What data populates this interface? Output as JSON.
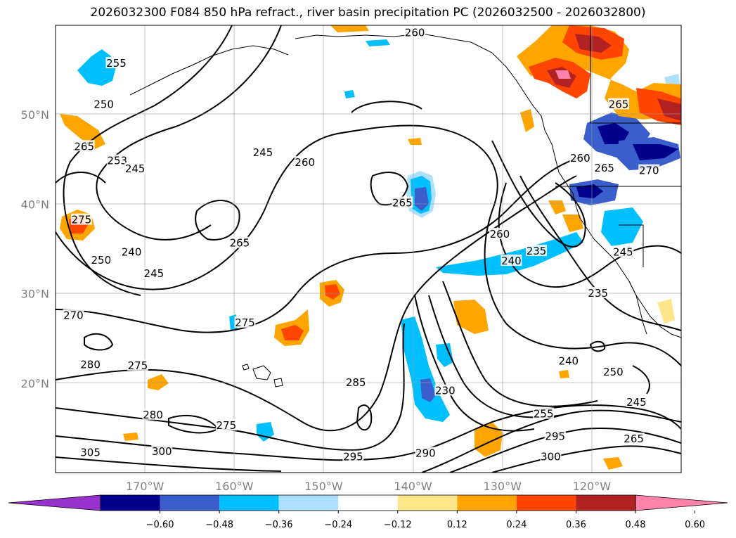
{
  "title": "2026032300 F084 850 hPa refract., river basin precipitation PC (2026032500 - 2026032800)",
  "map": {
    "lon_range": [
      -180,
      -110
    ],
    "lat_range": [
      10,
      60
    ],
    "lat_ticks": [
      {
        "value": 50,
        "label": "50°N"
      },
      {
        "value": 40,
        "label": "40°N"
      },
      {
        "value": 30,
        "label": "30°N"
      },
      {
        "value": 20,
        "label": "20°N"
      }
    ],
    "lon_ticks": [
      {
        "value": -170,
        "label": "170°W"
      },
      {
        "value": -160,
        "label": "160°W"
      },
      {
        "value": -150,
        "label": "150°W"
      },
      {
        "value": -140,
        "label": "140°W"
      },
      {
        "value": -130,
        "label": "130°W"
      },
      {
        "value": -120,
        "label": "120°W"
      }
    ],
    "contour_labels": [
      {
        "text": "260",
        "lon": -139.8,
        "lat": 59.0
      },
      {
        "text": "255",
        "lon": -173.2,
        "lat": 55.6
      },
      {
        "text": "250",
        "lon": -174.6,
        "lat": 51.0
      },
      {
        "text": "265",
        "lon": -117.0,
        "lat": 51.0
      },
      {
        "text": "265",
        "lon": -176.8,
        "lat": 46.3
      },
      {
        "text": "245",
        "lon": -156.8,
        "lat": 45.6
      },
      {
        "text": "253",
        "lon": -173.1,
        "lat": 44.7
      },
      {
        "text": "245",
        "lon": -171.1,
        "lat": 43.8
      },
      {
        "text": "260",
        "lon": -152.1,
        "lat": 44.5
      },
      {
        "text": "260",
        "lon": -121.3,
        "lat": 45.0
      },
      {
        "text": "265",
        "lon": -118.6,
        "lat": 43.9
      },
      {
        "text": "270",
        "lon": -113.6,
        "lat": 43.6
      },
      {
        "text": "265",
        "lon": -141.2,
        "lat": 40.0
      },
      {
        "text": "265",
        "lon": -159.4,
        "lat": 35.5
      },
      {
        "text": "260",
        "lon": -130.3,
        "lat": 36.5
      },
      {
        "text": "275",
        "lon": -177.1,
        "lat": 38.1
      },
      {
        "text": "240",
        "lon": -171.5,
        "lat": 34.5
      },
      {
        "text": "250",
        "lon": -174.9,
        "lat": 33.6
      },
      {
        "text": "245",
        "lon": -169.0,
        "lat": 32.1
      },
      {
        "text": "235",
        "lon": -126.2,
        "lat": 34.6
      },
      {
        "text": "240",
        "lon": -129.0,
        "lat": 33.5
      },
      {
        "text": "245",
        "lon": -116.5,
        "lat": 34.5
      },
      {
        "text": "235",
        "lon": -119.3,
        "lat": 29.9
      },
      {
        "text": "275",
        "lon": -158.8,
        "lat": 26.6
      },
      {
        "text": "270",
        "lon": -178.0,
        "lat": 27.4
      },
      {
        "text": "280",
        "lon": -176.1,
        "lat": 21.9
      },
      {
        "text": "275",
        "lon": -170.8,
        "lat": 21.8
      },
      {
        "text": "285",
        "lon": -146.4,
        "lat": 19.9
      },
      {
        "text": "240",
        "lon": -122.6,
        "lat": 22.3
      },
      {
        "text": "250",
        "lon": -117.6,
        "lat": 21.1
      },
      {
        "text": "230",
        "lon": -136.4,
        "lat": 19.0
      },
      {
        "text": "245",
        "lon": -115.0,
        "lat": 17.7
      },
      {
        "text": "280",
        "lon": -169.1,
        "lat": 16.3
      },
      {
        "text": "275",
        "lon": -160.9,
        "lat": 15.1
      },
      {
        "text": "255",
        "lon": -125.4,
        "lat": 16.4
      },
      {
        "text": "295",
        "lon": -124.1,
        "lat": 13.9
      },
      {
        "text": "265",
        "lon": -115.3,
        "lat": 13.6
      },
      {
        "text": "300",
        "lon": -168.1,
        "lat": 12.2
      },
      {
        "text": "305",
        "lon": -176.1,
        "lat": 12.1
      },
      {
        "text": "295",
        "lon": -146.7,
        "lat": 11.6
      },
      {
        "text": "290",
        "lon": -138.6,
        "lat": 12.0
      },
      {
        "text": "300",
        "lon": -124.6,
        "lat": 11.6
      }
    ]
  },
  "colorbar": {
    "tick_labels": [
      "−0.60",
      "−0.48",
      "−0.36",
      "−0.24",
      "−0.12",
      "0.12",
      "0.24",
      "0.36",
      "0.48",
      "0.60"
    ],
    "colors": [
      "#9932CC",
      "#00008B",
      "#3A5FCD",
      "#00BFFF",
      "#ADDFFF",
      "#FFFFFF",
      "#FFE68A",
      "#FFA500",
      "#FF4500",
      "#B22222",
      "#FF82AB"
    ]
  }
}
